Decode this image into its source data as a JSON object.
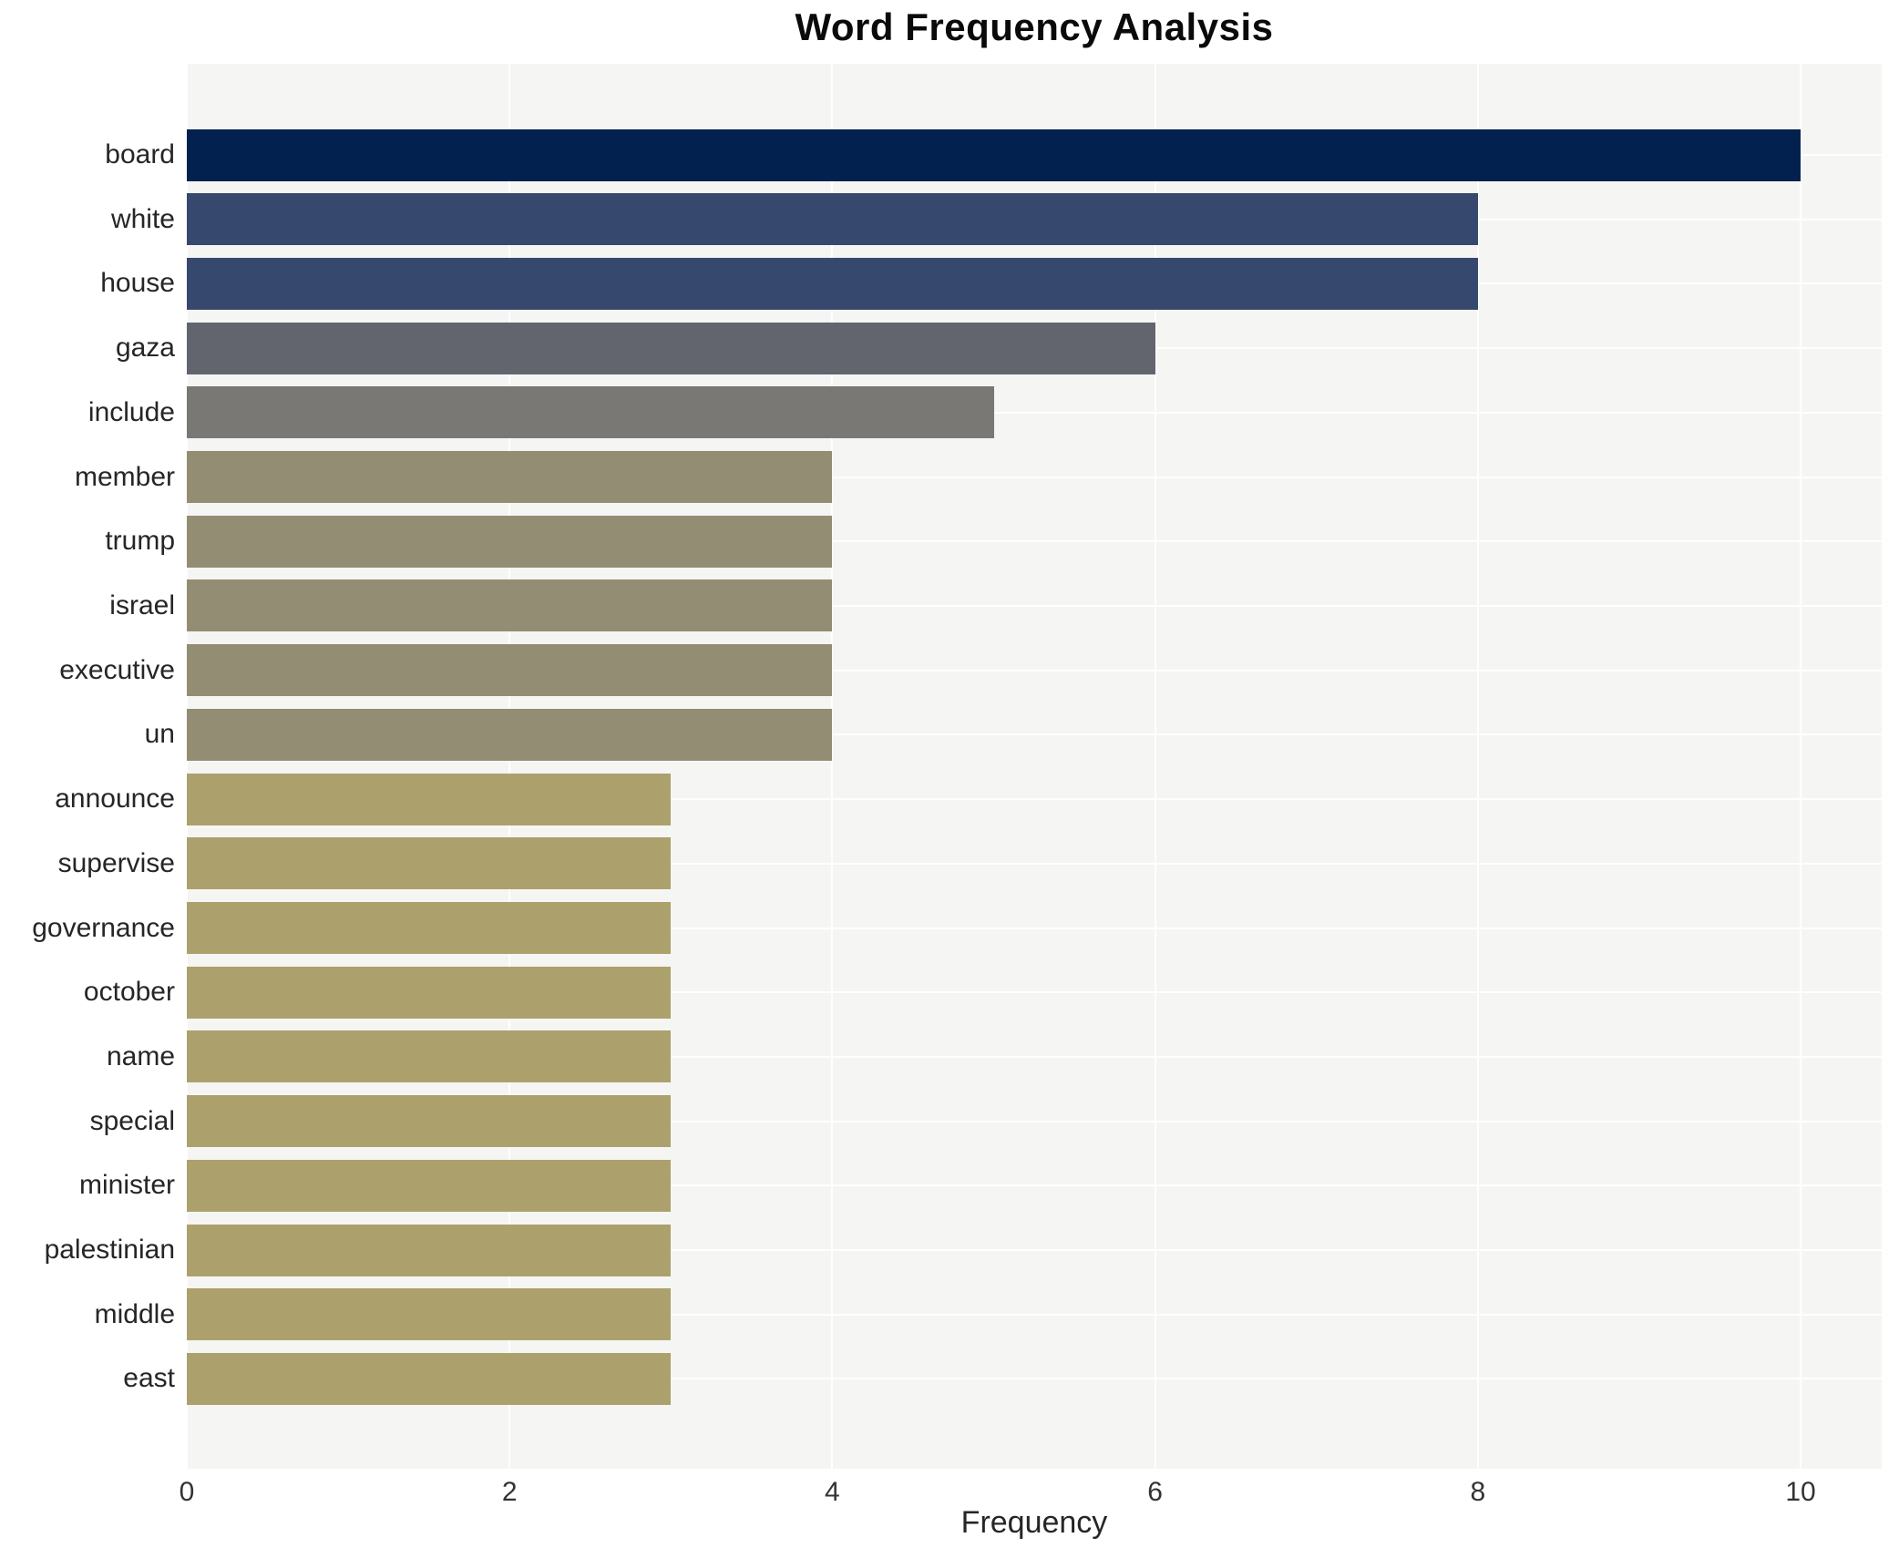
{
  "chart_data": {
    "type": "bar",
    "orientation": "horizontal",
    "title": "Word Frequency Analysis",
    "xlabel": "Frequency",
    "ylabel": "",
    "categories": [
      "board",
      "white",
      "house",
      "gaza",
      "include",
      "member",
      "trump",
      "israel",
      "executive",
      "un",
      "announce",
      "supervise",
      "governance",
      "october",
      "name",
      "special",
      "minister",
      "palestinian",
      "middle",
      "east"
    ],
    "values": [
      10,
      8,
      8,
      6,
      5,
      4,
      4,
      4,
      4,
      4,
      3,
      3,
      3,
      3,
      3,
      3,
      3,
      3,
      3,
      3
    ],
    "xticks": [
      "0",
      "2",
      "4",
      "6",
      "8",
      "10"
    ],
    "xtick_values": [
      0,
      2,
      4,
      6,
      8,
      10
    ],
    "xlim": [
      0,
      10.5
    ],
    "grid": true,
    "legend_visible": false,
    "colors": {
      "value_10": "#02214f",
      "value_8": "#36486e",
      "value_6": "#63656e",
      "value_5": "#7a7874",
      "value_4": "#938d74",
      "value_3": "#aca16c",
      "plot_background": "#f5f5f3",
      "figure_background": "#ffffff",
      "gridline": "#ffffff",
      "title_text": "#0a0a0a",
      "tick_text": "#333333",
      "label_text": "#262626"
    }
  }
}
